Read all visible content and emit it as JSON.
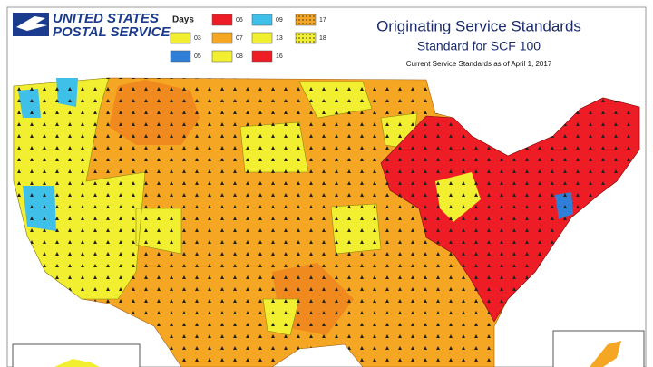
{
  "logo": {
    "lines": [
      "UNITED STATES",
      "POSTAL SERVICE"
    ]
  },
  "legend": {
    "title": "Days",
    "items": [
      {
        "label": "06",
        "color": "#ee1c25"
      },
      {
        "label": "09",
        "color": "#3fc0e8"
      },
      {
        "label": "17",
        "color": "#f5a623",
        "pattern": "dotted"
      },
      {
        "label": "03",
        "color": "#f2ee30"
      },
      {
        "label": "07",
        "color": "#f5a623"
      },
      {
        "label": "13",
        "color": "#f2ee30"
      },
      {
        "label": "18",
        "color": "#f2ee30",
        "pattern": "dotted"
      },
      {
        "label": "05",
        "color": "#2f7fd8"
      },
      {
        "label": "08",
        "color": "#f2ee30"
      },
      {
        "label": "16",
        "color": "#ee1c25"
      }
    ]
  },
  "header": {
    "title": "Originating Service Standards",
    "subtitle": "Standard for SCF 100",
    "note": "Current Service Standards as of April 1, 2017"
  }
}
